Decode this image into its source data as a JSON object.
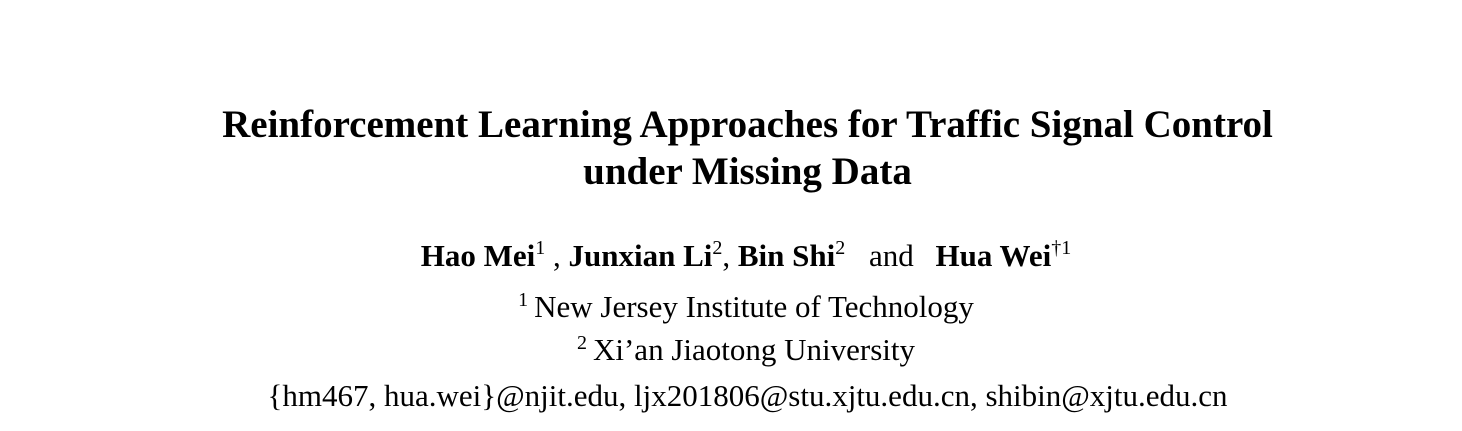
{
  "paper": {
    "title_line1": "Reinforcement Learning Approaches for Traffic Signal Control",
    "title_line2": "under Missing Data",
    "authors": [
      {
        "name": "Hao Mei",
        "mark": "1"
      },
      {
        "name": "Junxian Li",
        "mark": "2"
      },
      {
        "name": "Bin Shi",
        "mark": "2"
      },
      {
        "name": "Hua Wei",
        "mark": "†1"
      }
    ],
    "separator": ",",
    "and_word": "and",
    "affiliations": [
      {
        "mark": "1",
        "name": "New Jersey Institute of Technology"
      },
      {
        "mark": "2",
        "name": "Xi’an Jiaotong University"
      }
    ],
    "emails": "{hm467, hua.wei}@njit.edu, ljx201806@stu.xjtu.edu.cn, shibin@xjtu.edu.cn"
  }
}
